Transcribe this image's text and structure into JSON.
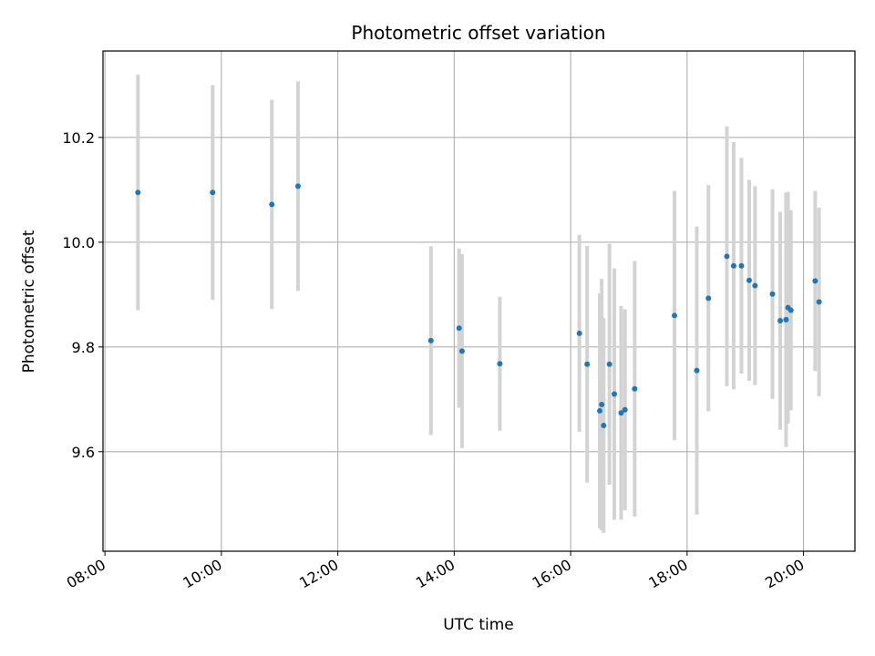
{
  "chart_data": {
    "type": "scatter",
    "title": "Photometric offset variation",
    "xlabel": "UTC time",
    "ylabel": "Photometric offset",
    "x_ticks": [
      "08:00",
      "10:00",
      "12:00",
      "14:00",
      "16:00",
      "18:00",
      "20:00"
    ],
    "y_ticks": [
      "9.6",
      "9.8",
      "10.0",
      "10.2"
    ],
    "xlim": [
      "07:58",
      "20:53"
    ],
    "ylim": [
      9.41,
      10.365
    ],
    "grid": true,
    "marker_color": "#1f77b4",
    "errorbar_color": "#d3d3d3",
    "points": [
      {
        "x": "08:34",
        "y": 10.095,
        "err": 0.225
      },
      {
        "x": "09:51",
        "y": 10.095,
        "err": 0.205
      },
      {
        "x": "10:52",
        "y": 10.072,
        "err": 0.2
      },
      {
        "x": "11:19",
        "y": 10.107,
        "err": 0.2
      },
      {
        "x": "13:36",
        "y": 9.812,
        "err": 0.18
      },
      {
        "x": "14:05",
        "y": 9.836,
        "err": 0.152
      },
      {
        "x": "14:08",
        "y": 9.792,
        "err": 0.185
      },
      {
        "x": "14:47",
        "y": 9.768,
        "err": 0.128
      },
      {
        "x": "16:09",
        "y": 9.826,
        "err": 0.188
      },
      {
        "x": "16:17",
        "y": 9.767,
        "err": 0.226
      },
      {
        "x": "16:30",
        "y": 9.678,
        "err": 0.224
      },
      {
        "x": "16:32",
        "y": 9.69,
        "err": 0.24
      },
      {
        "x": "16:34",
        "y": 9.65,
        "err": 0.205
      },
      {
        "x": "16:40",
        "y": 9.767,
        "err": 0.23
      },
      {
        "x": "16:45",
        "y": 9.71,
        "err": 0.24
      },
      {
        "x": "16:52",
        "y": 9.674,
        "err": 0.204
      },
      {
        "x": "16:56",
        "y": 9.68,
        "err": 0.192
      },
      {
        "x": "17:06",
        "y": 9.72,
        "err": 0.244
      },
      {
        "x": "17:47",
        "y": 9.86,
        "err": 0.238
      },
      {
        "x": "18:10",
        "y": 9.755,
        "err": 0.275
      },
      {
        "x": "18:22",
        "y": 9.893,
        "err": 0.216
      },
      {
        "x": "18:41",
        "y": 9.973,
        "err": 0.248
      },
      {
        "x": "18:48",
        "y": 9.955,
        "err": 0.236
      },
      {
        "x": "18:56",
        "y": 9.955,
        "err": 0.206
      },
      {
        "x": "19:04",
        "y": 9.927,
        "err": 0.192
      },
      {
        "x": "19:10",
        "y": 9.917,
        "err": 0.19
      },
      {
        "x": "19:28",
        "y": 9.901,
        "err": 0.2
      },
      {
        "x": "19:36",
        "y": 9.85,
        "err": 0.208
      },
      {
        "x": "19:42",
        "y": 9.852,
        "err": 0.243
      },
      {
        "x": "19:44",
        "y": 9.875,
        "err": 0.221
      },
      {
        "x": "19:47",
        "y": 9.87,
        "err": 0.191
      },
      {
        "x": "20:12",
        "y": 9.926,
        "err": 0.172
      },
      {
        "x": "20:16",
        "y": 9.886,
        "err": 0.18
      }
    ]
  }
}
